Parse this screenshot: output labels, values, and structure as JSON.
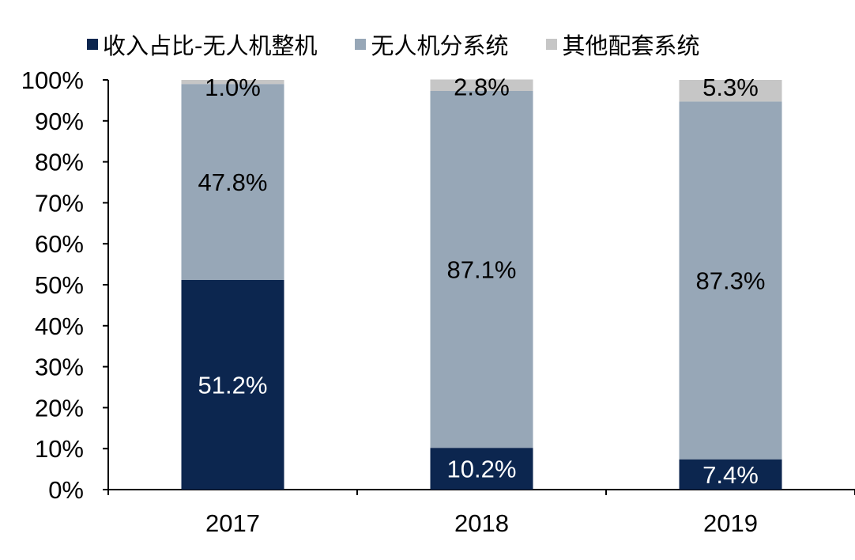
{
  "chart_data": {
    "type": "bar",
    "stacked": true,
    "categories": [
      "2017",
      "2018",
      "2019"
    ],
    "series": [
      {
        "name": "收入占比-无人机整机",
        "color": "#0c264f",
        "values": [
          51.2,
          10.2,
          7.4
        ],
        "labels": [
          "51.2%",
          "10.2%",
          "7.4%"
        ],
        "label_color": "#ffffff"
      },
      {
        "name": "无人机分系统",
        "color": "#97a7b7",
        "values": [
          47.8,
          87.1,
          87.3
        ],
        "labels": [
          "47.8%",
          "87.1%",
          "87.3%"
        ],
        "label_color": "#000000"
      },
      {
        "name": "其他配套系统",
        "color": "#c6c6c6",
        "values": [
          1.0,
          2.8,
          5.3
        ],
        "labels": [
          "1.0%",
          "2.8%",
          "5.3%"
        ],
        "label_color": "#000000"
      }
    ],
    "ylim": [
      0,
      100
    ],
    "yticks": [
      "0%",
      "10%",
      "20%",
      "30%",
      "40%",
      "50%",
      "60%",
      "70%",
      "80%",
      "90%",
      "100%"
    ],
    "legend_position": "top",
    "grid": false
  }
}
